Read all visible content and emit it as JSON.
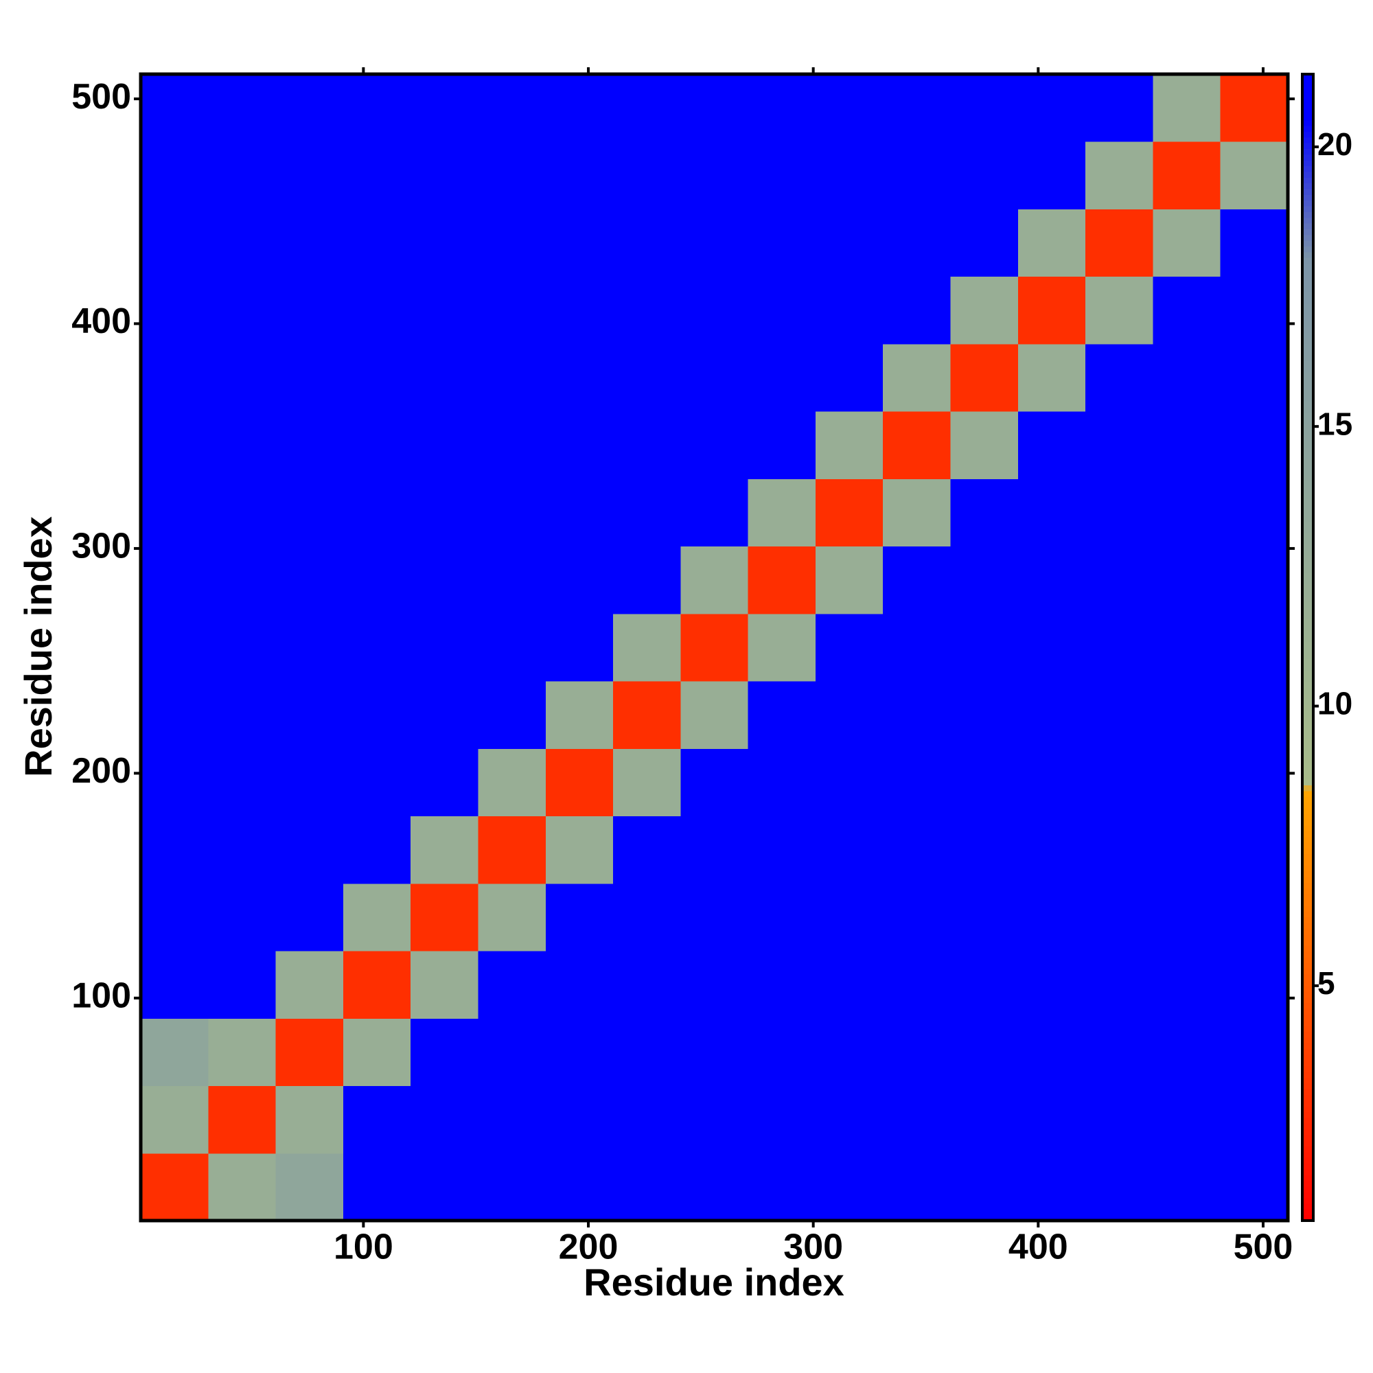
{
  "chart_data": {
    "type": "heatmap",
    "xlabel": "Residue index",
    "ylabel": "Residue index",
    "xbins": [
      1,
      31,
      61,
      91,
      121,
      151,
      181,
      211,
      241,
      271,
      301,
      331,
      361,
      391,
      421,
      451,
      481,
      511
    ],
    "ybins": [
      1,
      31,
      61,
      91,
      121,
      151,
      181,
      211,
      241,
      271,
      301,
      331,
      361,
      391,
      421,
      451,
      481,
      511
    ],
    "z": [
      [
        3,
        12,
        14,
        21,
        21,
        21,
        21,
        21,
        21,
        21,
        21,
        21,
        21,
        21,
        21,
        21,
        21
      ],
      [
        12,
        3,
        12,
        21,
        21,
        21,
        21,
        21,
        21,
        21,
        21,
        21,
        21,
        21,
        21,
        21,
        21
      ],
      [
        14,
        12,
        3,
        12,
        21,
        21,
        21,
        21,
        21,
        21,
        21,
        21,
        21,
        21,
        21,
        21,
        21
      ],
      [
        21,
        21,
        12,
        3,
        12,
        21,
        21,
        21,
        21,
        21,
        21,
        21,
        21,
        21,
        21,
        21,
        21
      ],
      [
        21,
        21,
        21,
        12,
        3,
        12,
        21,
        21,
        21,
        21,
        21,
        21,
        21,
        21,
        21,
        21,
        21
      ],
      [
        21,
        21,
        21,
        21,
        12,
        3,
        12,
        21,
        21,
        21,
        21,
        21,
        21,
        21,
        21,
        21,
        21
      ],
      [
        21,
        21,
        21,
        21,
        21,
        12,
        3,
        12,
        21,
        21,
        21,
        21,
        21,
        21,
        21,
        21,
        21
      ],
      [
        21,
        21,
        21,
        21,
        21,
        21,
        12,
        3,
        12,
        21,
        21,
        21,
        21,
        21,
        21,
        21,
        21
      ],
      [
        21,
        21,
        21,
        21,
        21,
        21,
        21,
        12,
        3,
        12,
        21,
        21,
        21,
        21,
        21,
        21,
        21
      ],
      [
        21,
        21,
        21,
        21,
        21,
        21,
        21,
        21,
        12,
        3,
        12,
        21,
        21,
        21,
        21,
        21,
        21
      ],
      [
        21,
        21,
        21,
        21,
        21,
        21,
        21,
        21,
        21,
        12,
        3,
        12,
        21,
        21,
        21,
        21,
        21
      ],
      [
        21,
        21,
        21,
        21,
        21,
        21,
        21,
        21,
        21,
        21,
        12,
        3,
        12,
        21,
        21,
        21,
        21
      ],
      [
        21,
        21,
        21,
        21,
        21,
        21,
        21,
        21,
        21,
        21,
        21,
        12,
        3,
        12,
        21,
        21,
        21
      ],
      [
        21,
        21,
        21,
        21,
        21,
        21,
        21,
        21,
        21,
        21,
        21,
        21,
        12,
        3,
        12,
        21,
        21
      ],
      [
        21,
        21,
        21,
        21,
        21,
        21,
        21,
        21,
        21,
        21,
        21,
        21,
        21,
        12,
        3,
        12,
        21
      ],
      [
        21,
        21,
        21,
        21,
        21,
        21,
        21,
        21,
        21,
        21,
        21,
        21,
        21,
        21,
        12,
        3,
        12
      ],
      [
        21,
        21,
        21,
        21,
        21,
        21,
        21,
        21,
        21,
        21,
        21,
        21,
        21,
        21,
        21,
        12,
        3
      ]
    ],
    "xlim": [
      1,
      511
    ],
    "ylim": [
      1,
      511
    ],
    "xticks": [
      100,
      200,
      300,
      400,
      500
    ],
    "yticks": [
      100,
      200,
      300,
      400,
      500
    ],
    "clim": [
      0.8,
      21.3
    ],
    "cticks": [
      5,
      10,
      15,
      20
    ],
    "colorscale": [
      [
        0.8,
        "#ff0000"
      ],
      [
        8.5,
        "#ffa500"
      ],
      [
        8.6,
        "#a8bc8a"
      ],
      [
        18,
        "#7d95a8"
      ],
      [
        20.5,
        "#0000ff"
      ],
      [
        21.3,
        "#0000ff"
      ]
    ]
  }
}
